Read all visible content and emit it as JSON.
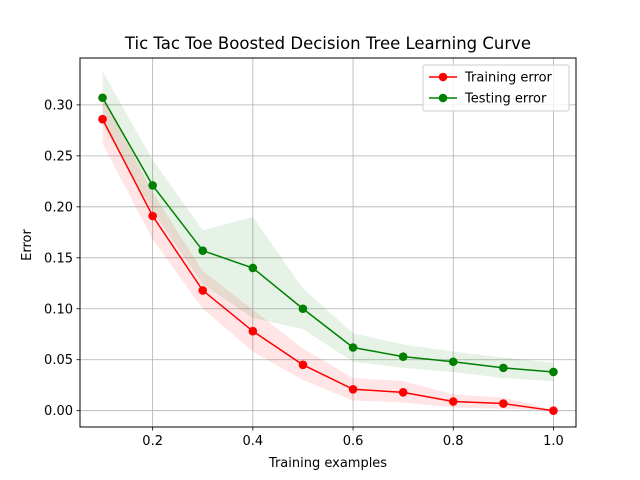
{
  "chart_data": {
    "type": "line",
    "title": "Tic Tac Toe Boosted Decision Tree Learning Curve",
    "xlabel": "Training examples",
    "ylabel": "Error",
    "xlim": [
      0.055,
      1.045
    ],
    "ylim": [
      -0.016,
      0.346
    ],
    "xticks": [
      "0.2",
      "0.4",
      "0.6",
      "0.8",
      "1.0"
    ],
    "xtick_values": [
      0.2,
      0.4,
      0.6,
      0.8,
      1.0
    ],
    "yticks": [
      "0.00",
      "0.05",
      "0.10",
      "0.15",
      "0.20",
      "0.25",
      "0.30"
    ],
    "ytick_values": [
      0.0,
      0.05,
      0.1,
      0.15,
      0.2,
      0.25,
      0.3
    ],
    "grid": true,
    "legend_position": "top-right",
    "x": [
      0.1,
      0.2,
      0.3,
      0.4,
      0.5,
      0.6,
      0.7,
      0.8,
      0.9,
      1.0
    ],
    "series": [
      {
        "name": "Training error",
        "color": "#ff0000",
        "values": [
          0.286,
          0.191,
          0.118,
          0.078,
          0.045,
          0.021,
          0.018,
          0.009,
          0.007,
          0.0
        ],
        "band_lower": [
          0.262,
          0.168,
          0.1,
          0.058,
          0.03,
          0.01,
          0.008,
          0.003,
          0.002,
          0.0
        ],
        "band_upper": [
          0.31,
          0.214,
          0.137,
          0.099,
          0.061,
          0.032,
          0.029,
          0.016,
          0.013,
          0.001
        ]
      },
      {
        "name": "Testing error",
        "color": "#008000",
        "values": [
          0.307,
          0.221,
          0.157,
          0.14,
          0.1,
          0.062,
          0.053,
          0.048,
          0.042,
          0.038
        ],
        "band_lower": [
          0.281,
          0.196,
          0.124,
          0.091,
          0.08,
          0.048,
          0.042,
          0.038,
          0.032,
          0.029
        ],
        "band_upper": [
          0.333,
          0.246,
          0.177,
          0.19,
          0.12,
          0.076,
          0.065,
          0.058,
          0.052,
          0.047
        ]
      }
    ]
  }
}
